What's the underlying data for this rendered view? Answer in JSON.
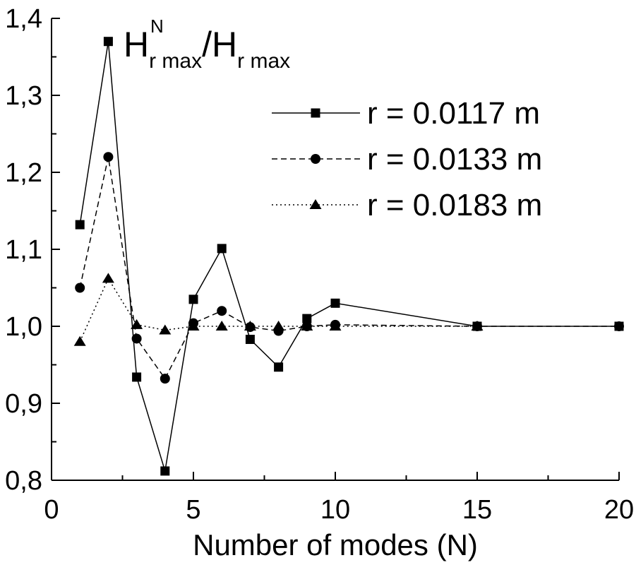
{
  "chart_data": {
    "type": "line",
    "xlabel": "Number of modes (N)",
    "ylabel": "",
    "xlim": [
      0,
      20
    ],
    "ylim": [
      0.8,
      1.4
    ],
    "x_ticks": [
      "0",
      "5",
      "10",
      "15",
      "20"
    ],
    "y_ticks": [
      "0,8",
      "0,9",
      "1,0",
      "1,1",
      "1,2",
      "1,3",
      "1,4"
    ],
    "annotation": {
      "base1": "H",
      "sub1": "r max",
      "sup1": "N",
      "slash": "/",
      "base2": "H",
      "sub2": "r max"
    },
    "legend_position": "top-right",
    "grid": false,
    "series": [
      {
        "name": "r = 0.0117 m",
        "marker": "square",
        "line": "solid",
        "x": [
          1,
          2,
          3,
          4,
          5,
          6,
          7,
          8,
          9,
          10,
          15,
          20
        ],
        "y": [
          1.132,
          1.37,
          0.934,
          0.812,
          1.035,
          1.101,
          0.983,
          0.947,
          1.01,
          1.03,
          1.0,
          1.0
        ]
      },
      {
        "name": "r = 0.0133 m",
        "marker": "circle",
        "line": "dashed",
        "x": [
          1,
          2,
          3,
          4,
          5,
          6,
          7,
          8,
          9,
          10,
          15,
          20
        ],
        "y": [
          1.05,
          1.22,
          0.984,
          0.932,
          1.004,
          1.02,
          0.999,
          0.994,
          1.0,
          1.002,
          1.0,
          1.0
        ]
      },
      {
        "name": "r = 0.0183 m",
        "marker": "triangle",
        "line": "dotted",
        "x": [
          1,
          2,
          3,
          4,
          5,
          6,
          7,
          8,
          9,
          10,
          15
        ],
        "y": [
          0.98,
          1.062,
          1.002,
          0.995,
          1.0,
          1.0,
          1.0,
          1.0,
          1.0,
          1.0,
          1.0
        ]
      }
    ]
  }
}
